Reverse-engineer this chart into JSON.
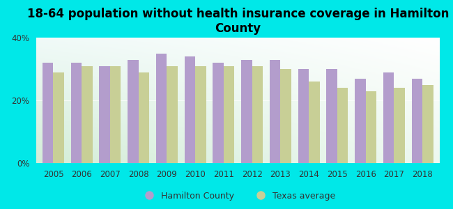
{
  "title": "18-64 population without health insurance coverage in Hamilton\nCounty",
  "years": [
    2005,
    2006,
    2007,
    2008,
    2009,
    2010,
    2011,
    2012,
    2013,
    2014,
    2015,
    2016,
    2017,
    2018
  ],
  "hamilton": [
    32,
    32,
    31,
    33,
    35,
    34,
    32,
    33,
    33,
    30,
    30,
    27,
    29,
    27
  ],
  "texas": [
    29,
    31,
    31,
    29,
    31,
    31,
    31,
    31,
    30,
    26,
    24,
    23,
    24,
    25
  ],
  "hamilton_color": "#b39dcc",
  "texas_color": "#c8cf96",
  "background_color": "#00e8e8",
  "ylim": [
    0,
    40
  ],
  "yticks": [
    0,
    20,
    40
  ],
  "ytick_labels": [
    "0%",
    "20%",
    "40%"
  ],
  "bar_width": 0.38,
  "legend_hamilton": "Hamilton County",
  "legend_texas": "Texas average",
  "title_fontsize": 12,
  "tick_fontsize": 8.5,
  "legend_fontsize": 9
}
